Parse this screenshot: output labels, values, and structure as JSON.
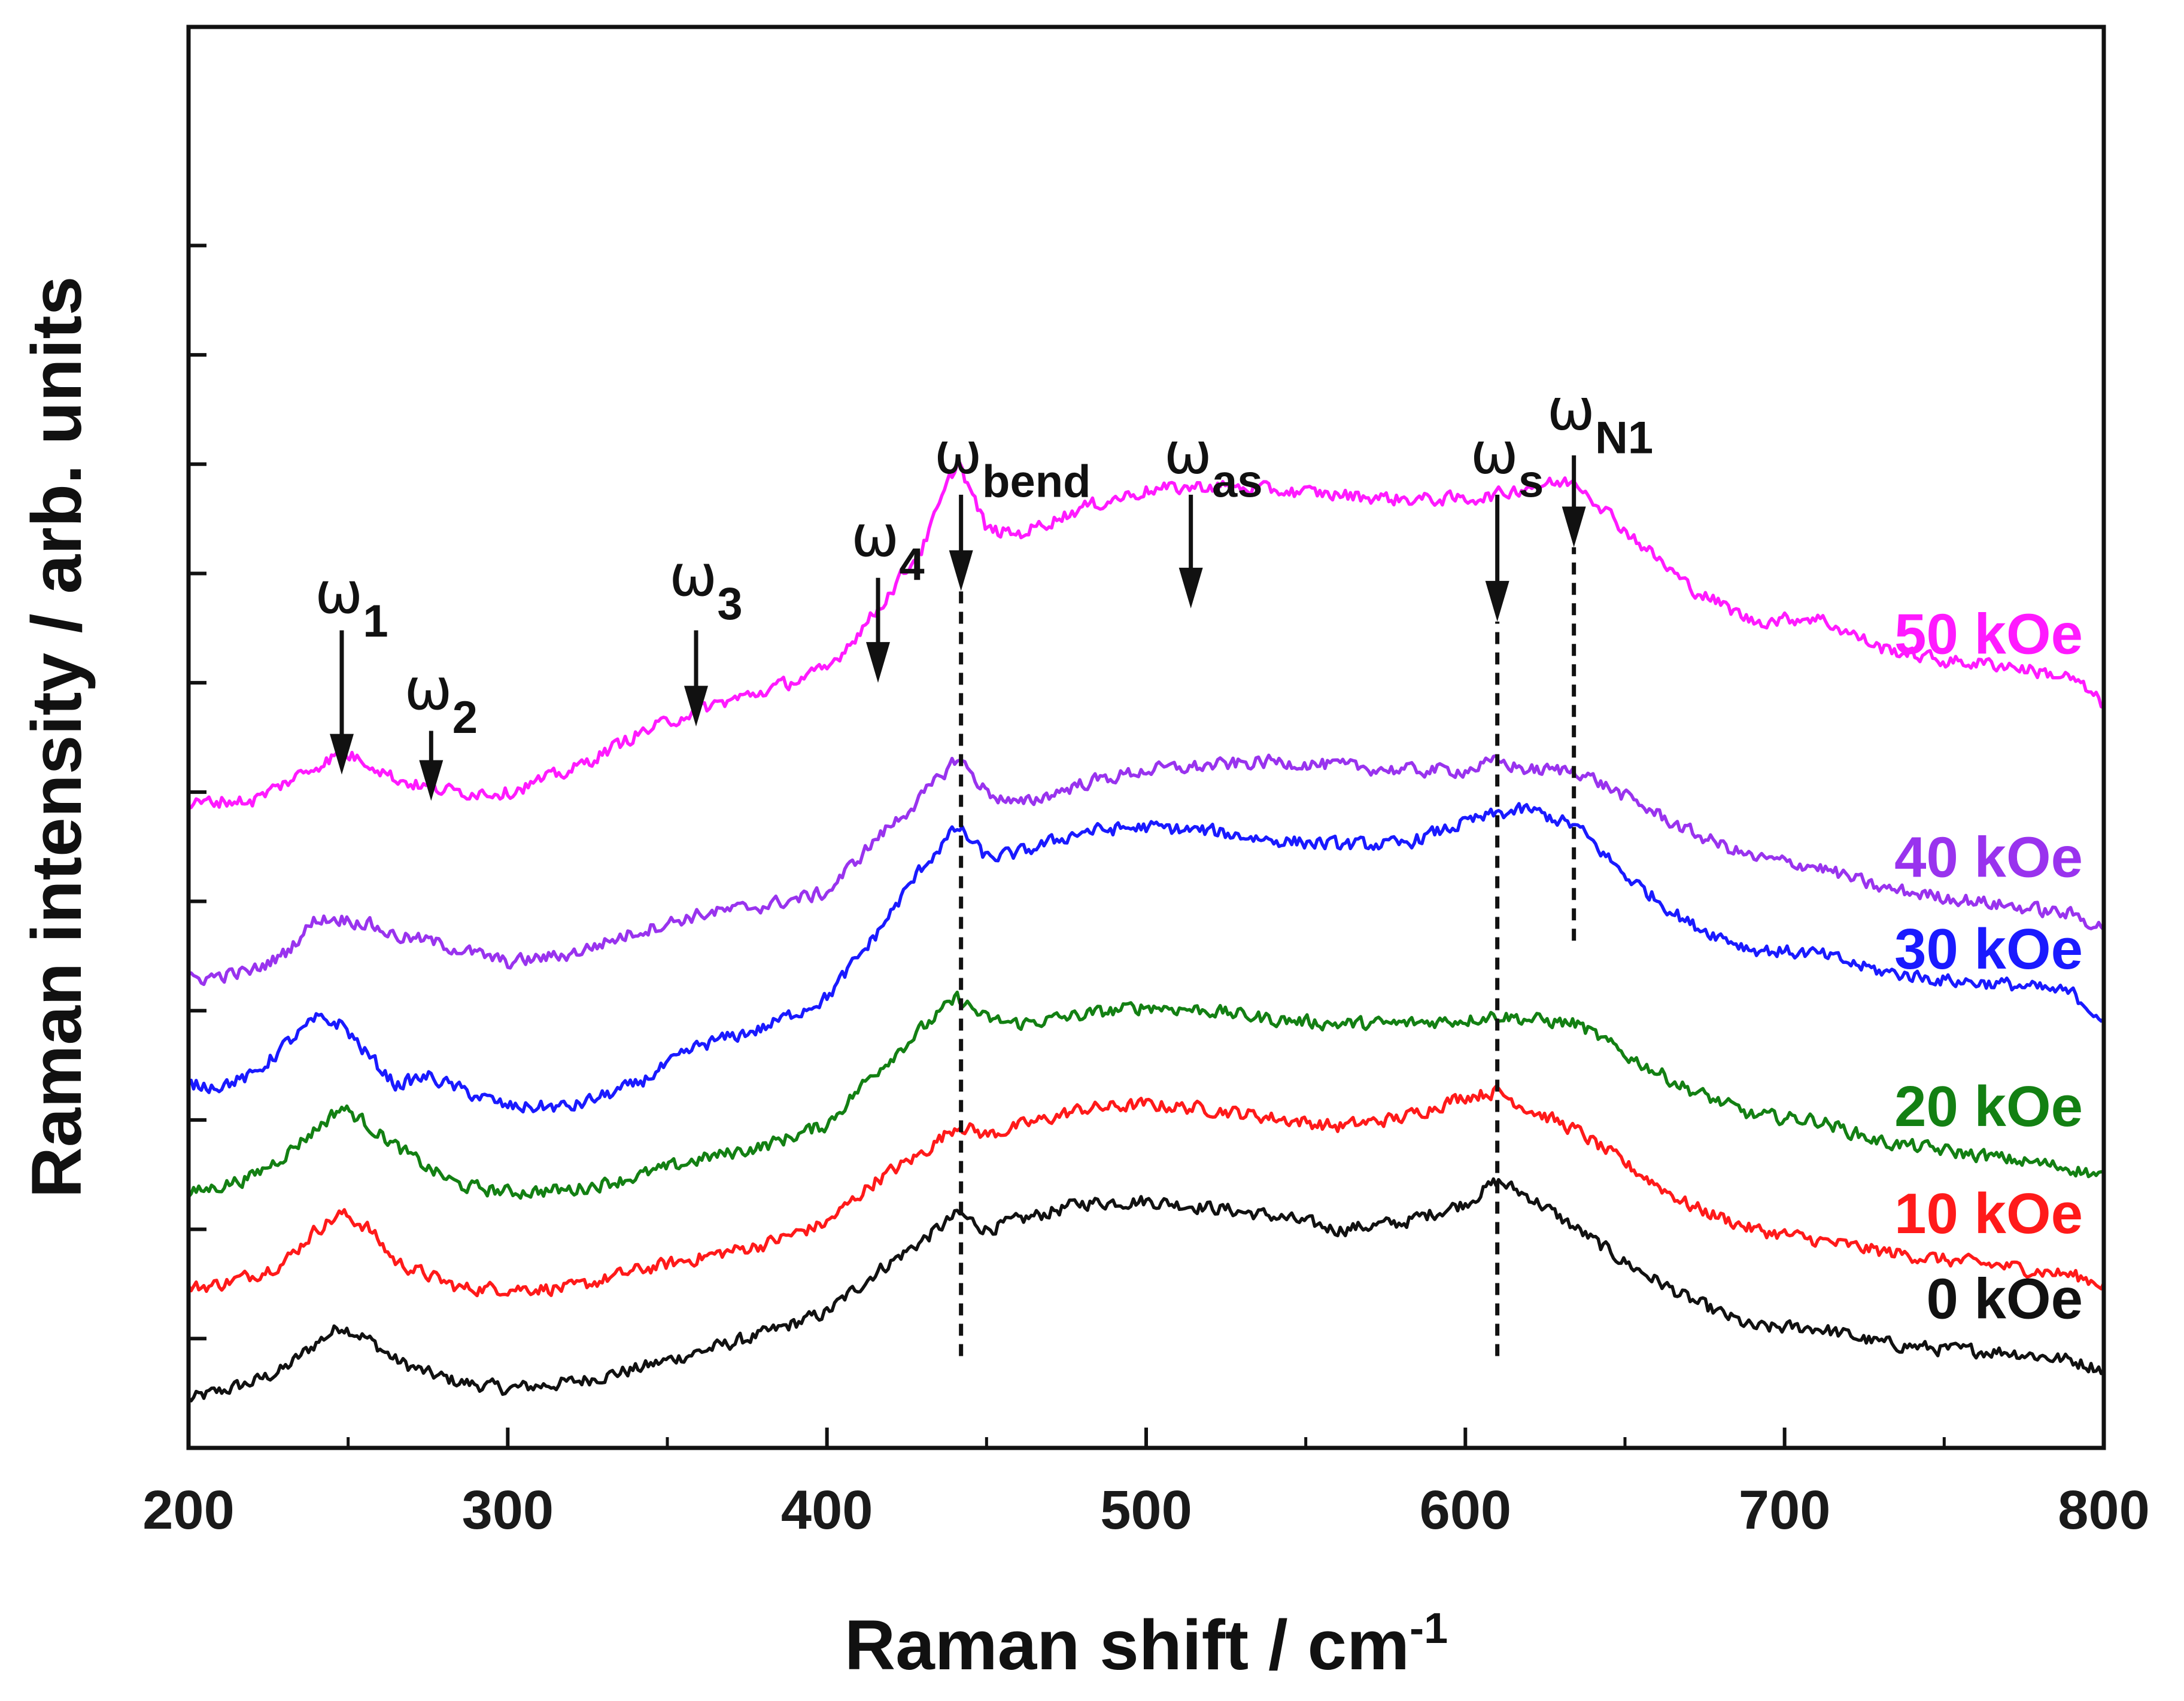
{
  "chart_data": {
    "type": "line",
    "title": "",
    "xlabel": "Raman shift / cm",
    "xlabel_superscript": "-1",
    "ylabel": "Raman intensity / arb. units",
    "xlim": [
      200,
      800
    ],
    "ylim": [
      0,
      6.5
    ],
    "xticks": [
      200,
      300,
      400,
      500,
      600,
      700,
      800
    ],
    "xtick_labels": [
      "200",
      "300",
      "400",
      "500",
      "600",
      "700",
      "800"
    ],
    "yticks": [
      0.5,
      1.0,
      1.5,
      2.0,
      2.5,
      3.0,
      3.5,
      4.0,
      4.5,
      5.0,
      5.5
    ],
    "ytick_labels_shown": false,
    "grid": false,
    "x": [
      200,
      210,
      220,
      230,
      240,
      248,
      256,
      265,
      275,
      285,
      300,
      320,
      340,
      360,
      380,
      400,
      415,
      430,
      441,
      450,
      460,
      480,
      500,
      520,
      540,
      560,
      580,
      600,
      610,
      620,
      635,
      650,
      670,
      690,
      710,
      730,
      750,
      770,
      790,
      800
    ],
    "series": [
      {
        "name": "0 kOe",
        "color": "#111111",
        "offset": 0.0,
        "values": [
          0.22,
          0.26,
          0.3,
          0.36,
          0.48,
          0.56,
          0.5,
          0.4,
          0.34,
          0.3,
          0.27,
          0.3,
          0.36,
          0.44,
          0.52,
          0.62,
          0.8,
          0.95,
          1.07,
          1.0,
          1.04,
          1.12,
          1.13,
          1.1,
          1.06,
          1.0,
          1.03,
          1.12,
          1.22,
          1.15,
          1.0,
          0.85,
          0.68,
          0.55,
          0.55,
          0.48,
          0.45,
          0.44,
          0.4,
          0.36
        ]
      },
      {
        "name": "10 kOe",
        "color": "#ff1a1a",
        "offset": 0.45,
        "values": [
          0.28,
          0.3,
          0.34,
          0.4,
          0.55,
          0.62,
          0.56,
          0.4,
          0.34,
          0.28,
          0.28,
          0.28,
          0.36,
          0.42,
          0.48,
          0.58,
          0.77,
          0.9,
          1.03,
          0.98,
          1.02,
          1.1,
          1.12,
          1.1,
          1.06,
          1.02,
          1.06,
          1.16,
          1.18,
          1.1,
          1.0,
          0.85,
          0.66,
          0.55,
          0.5,
          0.45,
          0.41,
          0.38,
          0.34,
          0.3
        ]
      },
      {
        "name": "20 kOe",
        "color": "#138013",
        "offset": 0.98,
        "values": [
          0.18,
          0.22,
          0.26,
          0.36,
          0.48,
          0.58,
          0.5,
          0.4,
          0.3,
          0.22,
          0.19,
          0.2,
          0.26,
          0.34,
          0.4,
          0.5,
          0.74,
          0.94,
          1.08,
          0.98,
          0.96,
          1.0,
          1.04,
          1.02,
          0.98,
          0.96,
          0.96,
          0.98,
          1.0,
          0.98,
          0.96,
          0.82,
          0.66,
          0.54,
          0.52,
          0.42,
          0.38,
          0.34,
          0.3,
          0.26
        ]
      },
      {
        "name": "30 kOe",
        "color": "#1a1aff",
        "offset": 1.44,
        "values": [
          0.22,
          0.22,
          0.26,
          0.4,
          0.52,
          0.5,
          0.36,
          0.22,
          0.26,
          0.2,
          0.12,
          0.12,
          0.22,
          0.4,
          0.48,
          0.62,
          0.9,
          1.22,
          1.4,
          1.26,
          1.28,
          1.38,
          1.4,
          1.38,
          1.34,
          1.32,
          1.32,
          1.42,
          1.46,
          1.48,
          1.4,
          1.18,
          0.96,
          0.84,
          0.82,
          0.74,
          0.7,
          0.68,
          0.64,
          0.52
        ]
      },
      {
        "name": "40 kOe",
        "color": "#9933ee",
        "offset": 1.98,
        "values": [
          0.16,
          0.18,
          0.2,
          0.28,
          0.44,
          0.44,
          0.42,
          0.36,
          0.34,
          0.3,
          0.24,
          0.28,
          0.38,
          0.46,
          0.5,
          0.56,
          0.8,
          1.0,
          1.18,
          1.02,
          0.96,
          1.06,
          1.12,
          1.14,
          1.16,
          1.14,
          1.12,
          1.12,
          1.16,
          1.12,
          1.12,
          1.0,
          0.84,
          0.72,
          0.68,
          0.58,
          0.54,
          0.5,
          0.46,
          0.4
        ]
      },
      {
        "name": "50 kOe",
        "color": "#ff1aff",
        "offset": 2.54,
        "values": [
          0.4,
          0.42,
          0.42,
          0.5,
          0.58,
          0.64,
          0.6,
          0.52,
          0.48,
          0.46,
          0.46,
          0.56,
          0.72,
          0.84,
          0.92,
          1.02,
          1.28,
          1.58,
          1.98,
          1.66,
          1.64,
          1.76,
          1.84,
          1.86,
          1.84,
          1.82,
          1.8,
          1.8,
          1.82,
          1.86,
          1.88,
          1.66,
          1.4,
          1.24,
          1.26,
          1.12,
          1.06,
          1.04,
          0.98,
          0.86
        ]
      }
    ],
    "annotations": [
      {
        "symbol": "ω",
        "subscript": "1",
        "x": 248,
        "arrow_from": 3.74,
        "arrow_to": 3.08,
        "label_y": 3.82
      },
      {
        "symbol": "ω",
        "subscript": "2",
        "x": 276,
        "arrow_from": 3.28,
        "arrow_to": 2.96,
        "label_y": 3.38
      },
      {
        "symbol": "ω",
        "subscript": "3",
        "x": 359,
        "arrow_from": 3.74,
        "arrow_to": 3.3,
        "label_y": 3.9
      },
      {
        "symbol": "ω",
        "subscript": "4",
        "x": 416,
        "arrow_from": 3.98,
        "arrow_to": 3.5,
        "label_y": 4.08
      },
      {
        "symbol": "ω",
        "subscript": "bend",
        "x": 442,
        "arrow_from": 4.36,
        "arrow_to": 3.92,
        "label_y": 4.46
      },
      {
        "symbol": "ω",
        "subscript": "as",
        "x": 514,
        "arrow_from": 4.36,
        "arrow_to": 3.84,
        "label_y": 4.46
      },
      {
        "symbol": "ω",
        "subscript": "s",
        "x": 610,
        "arrow_from": 4.36,
        "arrow_to": 3.78,
        "label_y": 4.46
      },
      {
        "symbol": "ω",
        "subscript": "N1",
        "x": 634,
        "arrow_from": 4.54,
        "arrow_to": 4.12,
        "label_y": 4.66
      }
    ],
    "dashed_lines": [
      {
        "x": 442,
        "from": 0.42,
        "to": 3.92
      },
      {
        "x": 610,
        "from": 0.42,
        "to": 3.78
      },
      {
        "x": 634,
        "from": 2.32,
        "to": 4.12
      }
    ]
  }
}
